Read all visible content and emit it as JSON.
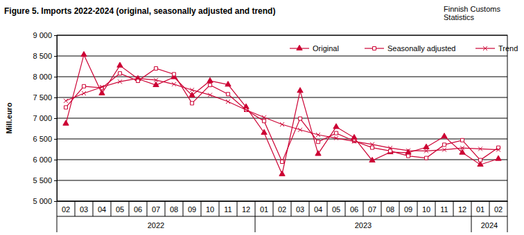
{
  "chart_data": {
    "type": "line",
    "title": "Figure 5. Imports 2022-2024  (original, seasonally adjusted and trend)",
    "source": [
      "Finnish Customs",
      "Statistics"
    ],
    "y_label": "Mill.euro",
    "categories": [
      "02",
      "03",
      "04",
      "05",
      "06",
      "07",
      "08",
      "09",
      "10",
      "11",
      "12",
      "01",
      "02",
      "03",
      "04",
      "05",
      "06",
      "07",
      "08",
      "09",
      "10",
      "11",
      "12",
      "01",
      "02"
    ],
    "groups": [
      {
        "label": "2022",
        "start": 0,
        "end": 10
      },
      {
        "label": "2023",
        "start": 11,
        "end": 22
      },
      {
        "label": "2024",
        "start": 23,
        "end": 24
      }
    ],
    "series": [
      {
        "name": "Original",
        "color": "#cc0033",
        "marker": "triangle",
        "line_style": "solid",
        "values": [
          6870,
          8530,
          7600,
          8270,
          7950,
          7800,
          7990,
          7550,
          7900,
          7810,
          7270,
          6650,
          5650,
          7660,
          6140,
          6790,
          6530,
          5980,
          6180,
          6170,
          6300,
          6560,
          6170,
          5880,
          6020
        ]
      },
      {
        "name": "Seasonally adjusted",
        "color": "#cc0033",
        "marker": "square",
        "line_style": "solid",
        "values": [
          7260,
          7770,
          7730,
          8080,
          7900,
          8200,
          8060,
          7360,
          7800,
          7580,
          7200,
          6930,
          5950,
          6990,
          6430,
          6640,
          6450,
          6290,
          6210,
          6090,
          6040,
          6360,
          6470,
          5990,
          6290
        ]
      },
      {
        "name": "Trend",
        "color": "#cc0033",
        "marker": "x",
        "line_style": "solid",
        "values": [
          7420,
          7600,
          7750,
          7880,
          7960,
          7920,
          7820,
          7680,
          7560,
          7400,
          7200,
          7020,
          6850,
          6720,
          6600,
          6520,
          6440,
          6370,
          6280,
          6220,
          6210,
          6240,
          6280,
          6260,
          6240
        ]
      }
    ],
    "ylim": [
      5000,
      9000
    ],
    "yticks": [
      {
        "value": 5000,
        "label": "5 000"
      },
      {
        "value": 5500,
        "label": "5 500"
      },
      {
        "value": 6000,
        "label": "6 000"
      },
      {
        "value": 6500,
        "label": "6 500"
      },
      {
        "value": 7000,
        "label": "7 000"
      },
      {
        "value": 7500,
        "label": "7 500"
      },
      {
        "value": 8000,
        "label": "8 000"
      },
      {
        "value": 8500,
        "label": "8 500"
      },
      {
        "value": 9000,
        "label": "9 000"
      }
    ],
    "grid": true,
    "legend": "upper right"
  }
}
